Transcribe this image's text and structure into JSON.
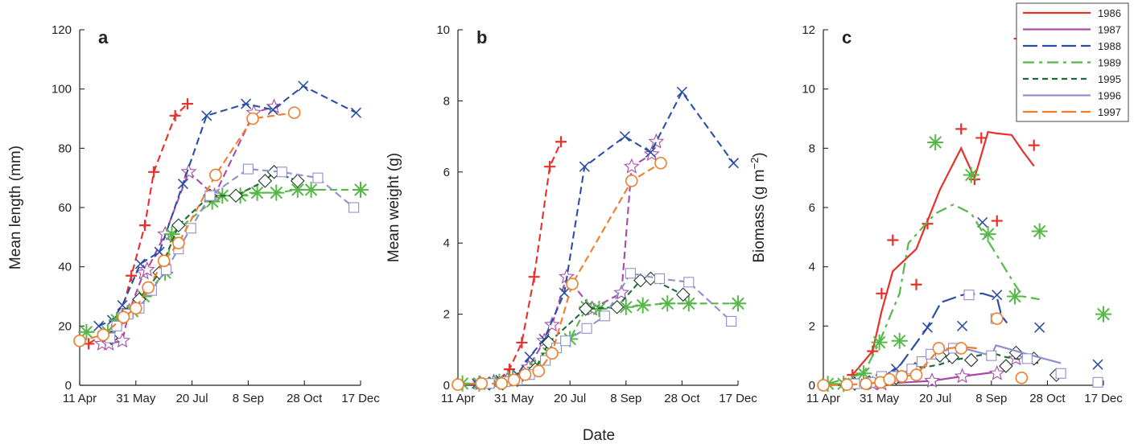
{
  "figure": {
    "xlabel_shared": "Date",
    "series_styles": {
      "1986": {
        "color": "#e8302a",
        "marker": "plus",
        "dash": "9,5"
      },
      "1987": {
        "color": "#a64ca6",
        "marker": "star",
        "dash": "9,5"
      },
      "1988": {
        "color": "#2d4fa3",
        "marker": "cross",
        "dash": "9,5"
      },
      "1989": {
        "color": "#55b848",
        "marker": "asterisk",
        "dash": "9,5"
      },
      "1995": {
        "color": "#1f6b35",
        "marker": "diamond",
        "dash": "7,4"
      },
      "1996": {
        "color": "#8f8fcf",
        "marker": "square",
        "dash": "9,5"
      },
      "1997": {
        "color": "#ef7d2c",
        "marker": "circle",
        "dash": "9,5"
      }
    }
  },
  "chart_data": [
    {
      "type": "line",
      "panel_label": "a",
      "ylabel": "Mean length (mm)",
      "xlabel": "",
      "x_ticks": [
        "11 Apr",
        "31 May",
        "20 Jul",
        "8 Sep",
        "28 Oct",
        "17 Dec"
      ],
      "xlim": [
        "11 Apr",
        "17 Dec"
      ],
      "ylim": [
        0,
        120
      ],
      "y_ticks": [
        "0",
        "20",
        "40",
        "60",
        "80",
        "100",
        "120"
      ],
      "grid": false,
      "series": [
        {
          "name": "1986",
          "x": [
            "19 Apr",
            "16 May",
            "27 May",
            "8 Jun",
            "16 Jun",
            "5 Jul",
            "16 Jul"
          ],
          "y": [
            14,
            21,
            37,
            54,
            72,
            91,
            95
          ]
        },
        {
          "name": "1987",
          "x": [
            "1 May",
            "7 May",
            "19 May",
            "25 May",
            "7 Jun",
            "10 Jun",
            "26 Jun",
            "17 Jul",
            "9 Aug",
            "13 Sep",
            "1 Oct"
          ],
          "y": [
            14,
            14,
            15,
            25,
            38,
            39,
            51,
            72,
            64,
            92,
            94
          ]
        },
        {
          "name": "1988",
          "x": [
            "28 Apr",
            "10 May",
            "19 May",
            "4 Jun",
            "21 Jun",
            "12 Jul",
            "2 Aug",
            "6 Sep",
            "30 Sep",
            "27 Oct",
            "13 Dec"
          ],
          "y": [
            20,
            22,
            27,
            41,
            45,
            68,
            91,
            95,
            93,
            101,
            92
          ]
        },
        {
          "name": "1989",
          "x": [
            "17 Apr",
            "6 May",
            "14 May",
            "28 May",
            "7 Jun",
            "26 Jun",
            "2 Jul",
            "7 Aug",
            "16 Aug",
            "1 Sep",
            "16 Sep",
            "3 Oct",
            "22 Oct",
            "3 Nov",
            "17 Dec"
          ],
          "y": [
            18,
            18,
            22,
            25,
            30,
            38,
            51,
            62,
            64,
            64,
            65,
            65,
            66,
            66,
            66
          ]
        },
        {
          "name": "1995",
          "x": [
            "9 May",
            "23 May",
            "3 Jun",
            "21 Jun",
            "8 Jul",
            "5 Aug",
            "28 Aug",
            "23 Sep",
            "1 Oct",
            "22 Oct"
          ],
          "y": [
            16,
            24,
            29,
            38,
            54,
            64,
            64,
            69,
            72,
            69
          ]
        },
        {
          "name": "1996",
          "x": [
            "8 May",
            "14 May",
            "24 May",
            "3 Jun",
            "14 Jun",
            "27 Jun",
            "8 Jul",
            "19 Jul",
            "5 Aug",
            "8 Sep",
            "8 Oct",
            "9 Nov",
            "11 Dec"
          ],
          "y": [
            16,
            20,
            24,
            26,
            32,
            39,
            46,
            53,
            64,
            73,
            72,
            70,
            60
          ]
        },
        {
          "name": "1997",
          "x": [
            "11 Apr",
            "2 May",
            "20 May",
            "31 May",
            "11 Jun",
            "25 Jun",
            "8 Jul",
            "10 Aug",
            "12 Sep",
            "19 Oct"
          ],
          "y": [
            15,
            17,
            23,
            26,
            33,
            42,
            48,
            71,
            90,
            92
          ]
        }
      ]
    },
    {
      "type": "line",
      "panel_label": "b",
      "ylabel": "Mean weight (g)",
      "xlabel": "",
      "x_ticks": [
        "11 Apr",
        "31 May",
        "20 Jul",
        "8 Sep",
        "28 Oct",
        "17 Dec"
      ],
      "xlim": [
        "11 Apr",
        "17 Dec"
      ],
      "ylim": [
        0,
        10
      ],
      "y_ticks": [
        "0",
        "2",
        "4",
        "6",
        "8",
        "10"
      ],
      "grid": false,
      "series": [
        {
          "name": "1986",
          "x": [
            "29 Apr",
            "16 May",
            "27 May",
            "7 Jun",
            "18 Jun",
            "2 Jul",
            "12 Jul"
          ],
          "y": [
            0.05,
            0.1,
            0.45,
            1.2,
            3.05,
            6.15,
            6.85
          ]
        },
        {
          "name": "1987",
          "x": [
            "1 May",
            "13 May",
            "25 May",
            "13 Jun",
            "27 Jun",
            "4 Jul",
            "17 Jul",
            "9 Aug",
            "4 Sep",
            "13 Sep",
            "1 Oct",
            "5 Oct"
          ],
          "y": [
            0.05,
            0.1,
            0.15,
            0.5,
            1.25,
            1.7,
            3.05,
            2.15,
            2.6,
            6.15,
            6.5,
            6.85
          ]
        },
        {
          "name": "1988",
          "x": [
            "28 Apr",
            "19 May",
            "3 Jun",
            "14 Jun",
            "27 Jun",
            "15 Jul",
            "2 Aug",
            "7 Sep",
            "30 Sep",
            "28 Oct",
            "13 Dec"
          ],
          "y": [
            0.05,
            0.15,
            0.3,
            0.8,
            1.3,
            2.6,
            6.15,
            7.0,
            6.55,
            8.25,
            6.25
          ]
        },
        {
          "name": "1989",
          "x": [
            "15 Apr",
            "30 Apr",
            "18 May",
            "30 May",
            "19 Jun",
            "1 Jul",
            "20 Jul",
            "4 Aug",
            "15 Aug",
            "8 Sep",
            "23 Sep",
            "15 Oct",
            "3 Nov",
            "17 Dec"
          ],
          "y": [
            0.05,
            0.05,
            0.1,
            0.2,
            0.5,
            0.9,
            1.3,
            2.2,
            2.15,
            2.2,
            2.25,
            2.3,
            2.3,
            2.3
          ]
        },
        {
          "name": "1995",
          "x": [
            "9 May",
            "21 May",
            "3 Jun",
            "19 Jun",
            "1 Jul",
            "3 Aug",
            "31 Aug",
            "21 Sep",
            "30 Sep",
            "29 Oct"
          ],
          "y": [
            0.05,
            0.05,
            0.15,
            0.45,
            1.2,
            2.15,
            2.2,
            2.95,
            3.0,
            2.55
          ]
        },
        {
          "name": "1996",
          "x": [
            "9 May",
            "23 May",
            "3 Jun",
            "14 Jun",
            "28 Jun",
            "8 Jul",
            "16 Jul",
            "4 Aug",
            "20 Aug",
            "12 Sep",
            "8 Oct",
            "3 Nov",
            "11 Dec"
          ],
          "y": [
            0.05,
            0.1,
            0.15,
            0.3,
            0.7,
            1.05,
            1.25,
            1.6,
            1.95,
            3.15,
            3.0,
            2.9,
            1.8
          ]
        },
        {
          "name": "1997",
          "x": [
            "11 Apr",
            "2 May",
            "20 May",
            "31 May",
            "10 Jun",
            "22 Jun",
            "4 Jul",
            "22 Jul",
            "13 Sep",
            "9 Oct"
          ],
          "y": [
            0.02,
            0.05,
            0.05,
            0.15,
            0.3,
            0.4,
            0.9,
            2.85,
            5.75,
            6.25
          ]
        }
      ]
    },
    {
      "type": "line",
      "panel_label": "c",
      "ylabel": "Biomass (g m⁻²)",
      "xlabel": "",
      "x_ticks": [
        "11 Apr",
        "31 May",
        "20 Jul",
        "8 Sep",
        "28 Oct",
        "17 Dec"
      ],
      "xlim": [
        "11 Apr",
        "17 Dec"
      ],
      "ylim": [
        0,
        12
      ],
      "y_ticks": [
        "0",
        "2",
        "4",
        "6",
        "8",
        "10",
        "12"
      ],
      "grid": false,
      "legend": {
        "position": "top-right",
        "entries": [
          "1986",
          "1987",
          "1988",
          "1989",
          "1995",
          "1996",
          "1997"
        ]
      },
      "series": [
        {
          "name": "1986",
          "x": [
            "7 May",
            "25 May",
            "2 Jun",
            "12 Jun",
            "3 Jul",
            "13 Jul",
            "12 Aug",
            "24 Aug",
            "30 Aug",
            "13 Sep",
            "3 Oct",
            "16 Oct"
          ],
          "y": [
            0.35,
            1.15,
            3.1,
            4.9,
            3.4,
            5.45,
            8.65,
            6.95,
            8.35,
            5.55,
            11.7,
            8.1
          ],
          "line_x": [
            "7 May",
            "25 May",
            "2 Jun",
            "12 Jun",
            "3 Jul",
            "24 Jul",
            "12 Aug",
            "24 Aug",
            "5 Sep",
            "13 Sep",
            "26 Sep",
            "6 Oct",
            "16 Oct"
          ],
          "line_y": [
            0.35,
            1.15,
            2.5,
            3.85,
            4.6,
            6.6,
            8.0,
            7.0,
            8.55,
            8.5,
            8.45,
            7.9,
            7.4
          ]
        },
        {
          "name": "1987",
          "x": [
            "25 May",
            "2 Jun",
            "17 Jul",
            "13 Aug",
            "13 Sep",
            "30 Sep"
          ],
          "y": [
            0.05,
            0.05,
            0.15,
            0.3,
            0.4,
            0.9
          ],
          "line_x": [
            "25 May",
            "2 Jun",
            "17 Jul",
            "13 Aug",
            "13 Sep"
          ],
          "line_y": [
            0.05,
            0.05,
            0.15,
            0.3,
            0.45
          ]
        },
        {
          "name": "1988",
          "x": [
            "19 May",
            "1 Jun",
            "15 Jun",
            "13 Jul",
            "13 Aug",
            "31 Aug",
            "13 Sep",
            "21 Oct",
            "12 Dec"
          ],
          "y": [
            0.05,
            0.2,
            0.55,
            1.95,
            2.0,
            5.5,
            3.05,
            1.95,
            0.7
          ],
          "line_x": [
            "19 May",
            "1 Jun",
            "19 Jun",
            "12 Jul",
            "25 Jul",
            "13 Aug",
            "31 Aug",
            "13 Sep",
            "17 Sep",
            "22 Sep"
          ],
          "line_y": [
            0.05,
            0.2,
            0.7,
            1.9,
            2.8,
            3.05,
            3.1,
            2.95,
            2.35,
            2.1
          ]
        },
        {
          "name": "1989",
          "x": [
            "15 Apr",
            "29 Apr",
            "17 May",
            "31 May",
            "18 Jun",
            "20 Jul",
            "21 Aug",
            "5 Sep",
            "29 Sep",
            "21 Oct",
            "17 Dec"
          ],
          "y": [
            0.05,
            0.05,
            0.4,
            1.45,
            1.5,
            8.2,
            7.1,
            5.1,
            3.0,
            5.2,
            2.4
          ],
          "line_x": [
            "15 Apr",
            "17 May",
            "31 May",
            "18 Jun",
            "26 Jun",
            "20 Jul",
            "5 Aug",
            "21 Aug",
            "29 Sep",
            "6 Oct",
            "21 Oct"
          ],
          "line_y": [
            0.05,
            0.4,
            1.45,
            3.1,
            4.8,
            5.8,
            6.1,
            5.8,
            3.4,
            3.0,
            2.9
          ]
        },
        {
          "name": "1995",
          "x": [
            "9 May",
            "22 May",
            "3 Jun",
            "15 Jun",
            "2 Jul",
            "24 Jul",
            "4 Aug",
            "21 Aug",
            "21 Sep",
            "30 Sep",
            "16 Oct",
            "5 Nov"
          ],
          "y": [
            0.05,
            0.1,
            0.15,
            0.25,
            0.55,
            1.0,
            0.95,
            0.85,
            0.65,
            1.1,
            0.9,
            0.35
          ],
          "line_x": [
            "9 May",
            "22 May",
            "3 Jun",
            "15 Jun",
            "2 Jul",
            "24 Jul",
            "4 Aug",
            "21 Aug",
            "8 Sep",
            "21 Sep",
            "30 Sep",
            "20 Oct"
          ],
          "line_y": [
            0.05,
            0.1,
            0.15,
            0.25,
            0.55,
            0.7,
            0.85,
            0.95,
            1.1,
            0.95,
            0.9,
            0.75
          ]
        },
        {
          "name": "1996",
          "x": [
            "9 May",
            "23 May",
            "2 Jun",
            "14 Jun",
            "29 Jun",
            "8 Jul",
            "16 Jul",
            "5 Aug",
            "19 Aug",
            "8 Sep",
            "12 Sep",
            "10 Oct",
            "9 Nov",
            "12 Dec"
          ],
          "y": [
            0.05,
            0.1,
            0.3,
            0.3,
            0.55,
            0.8,
            1.05,
            1.25,
            3.05,
            1.0,
            2.25,
            0.9,
            0.4,
            0.1
          ],
          "line_x": [
            "9 May",
            "23 May",
            "2 Jun",
            "14 Jun",
            "29 Jun",
            "8 Jul",
            "16 Jul",
            "5 Aug",
            "19 Aug",
            "8 Sep",
            "12 Sep",
            "10 Oct",
            "9 Nov"
          ],
          "line_y": [
            0.05,
            0.1,
            0.3,
            0.3,
            0.55,
            0.8,
            1.05,
            1.25,
            1.2,
            1.0,
            1.35,
            1.05,
            0.75
          ]
        },
        {
          "name": "1997",
          "x": [
            "11 Apr",
            "2 May",
            "19 May",
            "1 Jun",
            "9 Jun",
            "20 Jun",
            "3 Jul",
            "23 Jul",
            "12 Aug",
            "13 Sep",
            "5 Oct"
          ],
          "y": [
            0.0,
            0.02,
            0.05,
            0.1,
            0.2,
            0.3,
            0.35,
            1.25,
            1.25,
            2.25,
            0.25
          ],
          "line_x": [
            "11 Apr",
            "2 May",
            "19 May",
            "1 Jun",
            "9 Jun",
            "20 Jun",
            "3 Jul",
            "23 Jul",
            "12 Aug",
            "26 Aug"
          ],
          "line_y": [
            0.0,
            0.02,
            0.05,
            0.1,
            0.2,
            0.3,
            0.35,
            1.2,
            1.3,
            1.25
          ]
        }
      ]
    }
  ]
}
